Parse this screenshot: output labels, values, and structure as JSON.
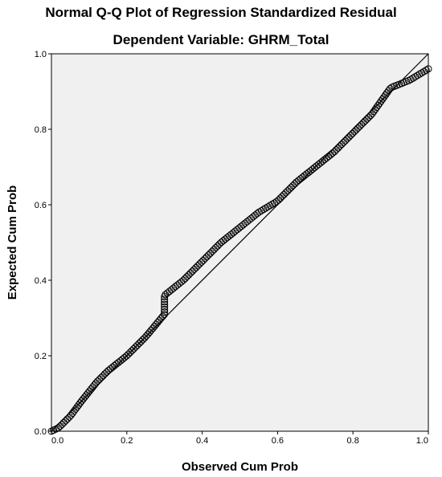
{
  "chart_data": {
    "type": "scatter",
    "title": "Normal Q-Q Plot of Regression Standardized Residual",
    "subtitle": "Dependent Variable: GHRM_Total",
    "xlabel": "Observed Cum Prob",
    "ylabel": "Expected Cum Prob",
    "xlim": [
      0,
      1
    ],
    "ylim": [
      0,
      1
    ],
    "x_ticks": [
      "0.0",
      "0.2",
      "0.4",
      "0.6",
      "0.8",
      "1.0"
    ],
    "y_ticks": [
      "0.0",
      "0.2",
      "0.4",
      "0.6",
      "0.8",
      "1.0"
    ],
    "grid": false,
    "reference_line": {
      "from": [
        0,
        0
      ],
      "to": [
        1,
        1
      ]
    },
    "colors": {
      "plot_background": "#f0f0f0",
      "marker": "#000000",
      "line": "#000000"
    },
    "curve_knots": [
      [
        0.0,
        0.0
      ],
      [
        0.02,
        0.01
      ],
      [
        0.05,
        0.04
      ],
      [
        0.08,
        0.08
      ],
      [
        0.12,
        0.13
      ],
      [
        0.15,
        0.16
      ],
      [
        0.2,
        0.2
      ],
      [
        0.25,
        0.25
      ],
      [
        0.3,
        0.31
      ],
      [
        0.3,
        0.36
      ],
      [
        0.35,
        0.4
      ],
      [
        0.4,
        0.45
      ],
      [
        0.45,
        0.5
      ],
      [
        0.5,
        0.54
      ],
      [
        0.55,
        0.58
      ],
      [
        0.6,
        0.61
      ],
      [
        0.65,
        0.66
      ],
      [
        0.7,
        0.7
      ],
      [
        0.75,
        0.74
      ],
      [
        0.8,
        0.79
      ],
      [
        0.85,
        0.84
      ],
      [
        0.9,
        0.91
      ],
      [
        0.95,
        0.93
      ],
      [
        1.0,
        0.96
      ]
    ],
    "n_points": 210
  }
}
